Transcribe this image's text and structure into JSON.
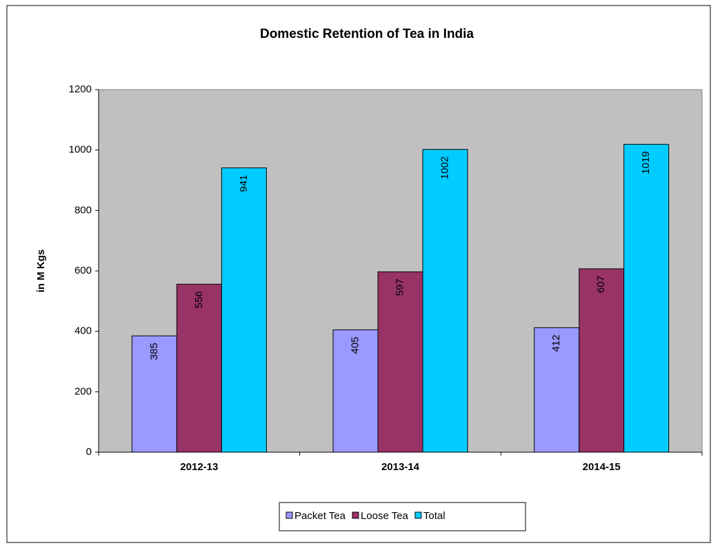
{
  "chart_data": {
    "type": "bar",
    "title": "Domestic Retention of Tea in India",
    "ylabel": "in M Kgs",
    "categories": [
      "2012-13",
      "2013-14",
      "2014-15"
    ],
    "series": [
      {
        "name": "Packet Tea",
        "color": "#9999ff",
        "values": [
          385,
          405,
          412
        ]
      },
      {
        "name": "Loose Tea",
        "color": "#993366",
        "values": [
          556,
          597,
          607
        ]
      },
      {
        "name": "Total",
        "color": "#00ccff",
        "values": [
          941,
          1002,
          1019
        ]
      }
    ],
    "ylim": [
      0,
      1200
    ],
    "yticks": [
      0,
      200,
      400,
      600,
      800,
      1000,
      1200
    ]
  }
}
